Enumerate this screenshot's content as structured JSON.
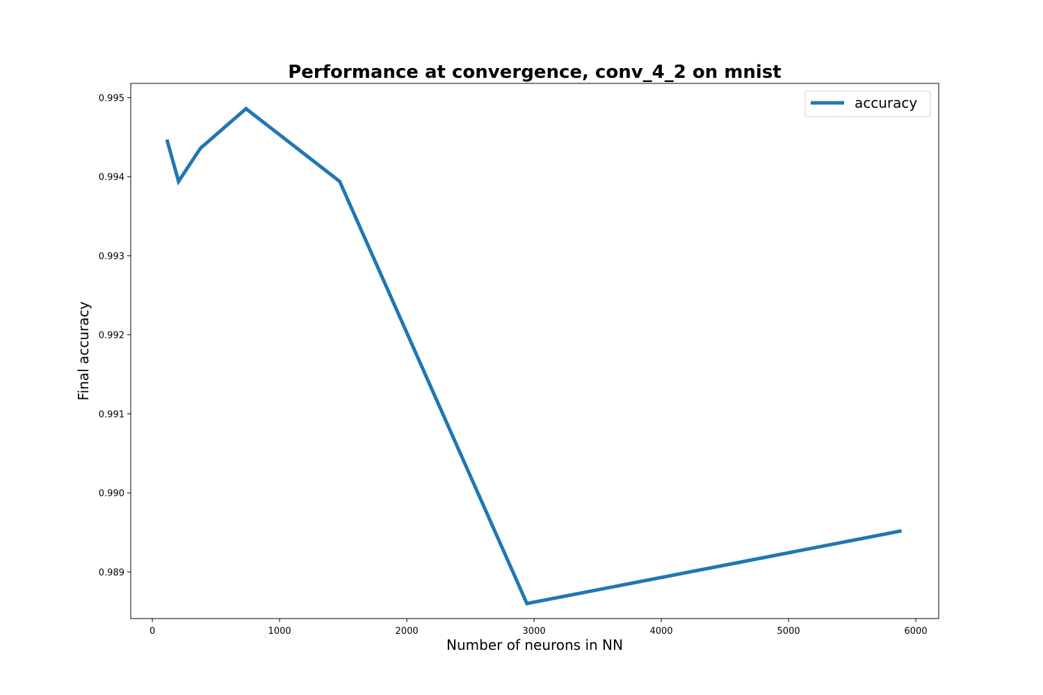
{
  "chart_data": {
    "type": "line",
    "title": "Performance at convergence, conv_4_2 on mnist",
    "xlabel": "Number of neurons in NN",
    "ylabel": "Final accuracy",
    "xlim": [
      -170,
      6180
    ],
    "ylim": [
      0.98841,
      0.99518
    ],
    "xticks": [
      0,
      1000,
      2000,
      3000,
      4000,
      5000,
      6000
    ],
    "xtick_labels": [
      "0",
      "1000",
      "2000",
      "3000",
      "4000",
      "5000",
      "6000"
    ],
    "yticks": [
      0.989,
      0.99,
      0.991,
      0.992,
      0.993,
      0.994,
      0.995
    ],
    "ytick_labels": [
      "0.989",
      "0.990",
      "0.991",
      "0.992",
      "0.993",
      "0.994",
      "0.995"
    ],
    "grid": false,
    "legend_position": "top-right",
    "series": [
      {
        "name": "accuracy",
        "color": "#1f77b4",
        "x": [
          114,
          206,
          378,
          736,
          1472,
          2944,
          5888
        ],
        "y": [
          0.99447,
          0.99394,
          0.99436,
          0.99486,
          0.99394,
          0.9886,
          0.98952
        ]
      }
    ]
  }
}
